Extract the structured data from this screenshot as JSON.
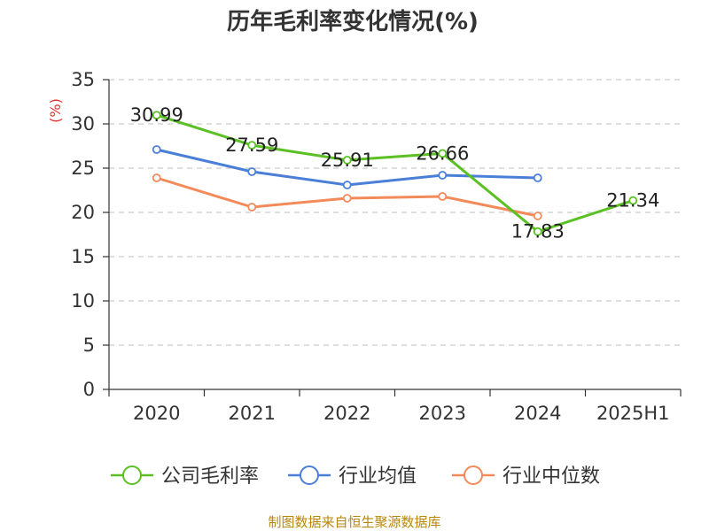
{
  "chart_data": {
    "type": "line",
    "title": "历年毛利率变化情况(%)",
    "ylabel": "(%)",
    "xlabel": "",
    "categories": [
      "2020",
      "2021",
      "2022",
      "2023",
      "2024",
      "2025H1"
    ],
    "ylim": [
      0,
      35
    ],
    "yticks": [
      0,
      5,
      10,
      15,
      20,
      25,
      30,
      35
    ],
    "grid": true,
    "legend_position": "bottom",
    "series": [
      {
        "name": "公司毛利率",
        "color": "#5ac024",
        "labeled": true,
        "values": [
          30.99,
          27.59,
          25.91,
          26.66,
          17.83,
          21.34
        ]
      },
      {
        "name": "行业均值",
        "color": "#4a7fd8",
        "labeled": false,
        "values": [
          27.1,
          24.6,
          23.1,
          24.2,
          23.9,
          null
        ]
      },
      {
        "name": "行业中位数",
        "color": "#f28a5a",
        "labeled": false,
        "values": [
          23.9,
          20.6,
          21.6,
          21.8,
          19.6,
          null
        ]
      }
    ],
    "source": "制图数据来自恒生聚源数据库",
    "source_color": "#b8860b",
    "ylabel_color": "#e03030"
  }
}
